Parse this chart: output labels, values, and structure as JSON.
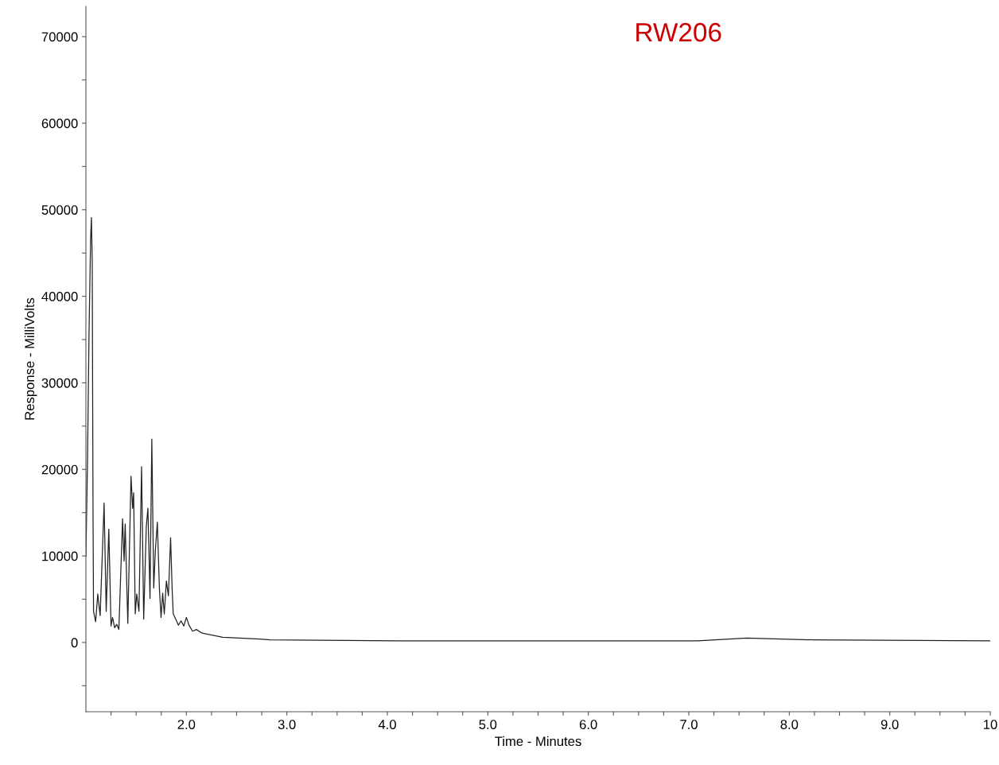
{
  "chart_data": {
    "type": "line",
    "annotations": [
      "RW206"
    ],
    "xlabel": "Time - Minutes",
    "ylabel": "Response - MilliVolts",
    "xlim": [
      1.0,
      10.0
    ],
    "ylim": [
      -8000,
      73500
    ],
    "xticks": [
      {
        "value": 1.25,
        "label": null
      },
      {
        "value": 1.5,
        "label": null
      },
      {
        "value": 1.75,
        "label": null
      },
      {
        "value": 2,
        "label": "2.0"
      },
      {
        "value": 2.25,
        "label": null
      },
      {
        "value": 2.5,
        "label": null
      },
      {
        "value": 2.75,
        "label": null
      },
      {
        "value": 3,
        "label": "3.0"
      },
      {
        "value": 3.25,
        "label": null
      },
      {
        "value": 3.5,
        "label": null
      },
      {
        "value": 3.75,
        "label": null
      },
      {
        "value": 4,
        "label": "4.0"
      },
      {
        "value": 4.25,
        "label": null
      },
      {
        "value": 4.5,
        "label": null
      },
      {
        "value": 4.75,
        "label": null
      },
      {
        "value": 5,
        "label": "5.0"
      },
      {
        "value": 5.25,
        "label": null
      },
      {
        "value": 5.5,
        "label": null
      },
      {
        "value": 5.75,
        "label": null
      },
      {
        "value": 6,
        "label": "6.0"
      },
      {
        "value": 6.25,
        "label": null
      },
      {
        "value": 6.5,
        "label": null
      },
      {
        "value": 6.75,
        "label": null
      },
      {
        "value": 7,
        "label": "7.0"
      },
      {
        "value": 7.25,
        "label": null
      },
      {
        "value": 7.5,
        "label": null
      },
      {
        "value": 7.75,
        "label": null
      },
      {
        "value": 8,
        "label": "8.0"
      },
      {
        "value": 8.25,
        "label": null
      },
      {
        "value": 8.5,
        "label": null
      },
      {
        "value": 8.75,
        "label": null
      },
      {
        "value": 9,
        "label": "9.0"
      },
      {
        "value": 9.25,
        "label": null
      },
      {
        "value": 9.5,
        "label": null
      },
      {
        "value": 9.75,
        "label": null
      },
      {
        "value": 10,
        "label": "10"
      }
    ],
    "yticks": [
      {
        "value": -5000,
        "label": null
      },
      0,
      {
        "value": 5000,
        "label": null
      },
      10000,
      {
        "value": 15000,
        "label": null
      },
      20000,
      {
        "value": 25000,
        "label": null
      },
      30000,
      {
        "value": 35000,
        "label": null
      },
      40000,
      {
        "value": 45000,
        "label": null
      },
      50000,
      {
        "value": 55000,
        "label": null
      },
      60000,
      {
        "value": 65000,
        "label": null
      },
      70000
    ],
    "grid": false,
    "series": [
      {
        "color": "#222222",
        "x": [
          1.0,
          1.016,
          1.031,
          1.047,
          1.055,
          1.063,
          1.071,
          1.076,
          1.097,
          1.118,
          1.142,
          1.181,
          1.202,
          1.228,
          1.25,
          1.265,
          1.286,
          1.307,
          1.328,
          1.365,
          1.38,
          1.391,
          1.417,
          1.449,
          1.465,
          1.475,
          1.491,
          1.506,
          1.528,
          1.554,
          1.575,
          1.601,
          1.617,
          1.628,
          1.638,
          1.656,
          1.675,
          1.691,
          1.711,
          1.732,
          1.748,
          1.764,
          1.78,
          1.801,
          1.821,
          1.843,
          1.858,
          1.869,
          1.89,
          1.921,
          1.947,
          1.974,
          2.0,
          2.026,
          2.061,
          2.1,
          2.152,
          2.362,
          2.73,
          2.835,
          4.094,
          5.328,
          7.087,
          7.575,
          8.244,
          10.0
        ],
        "values": [
          10000,
          21000,
          35700,
          46700,
          49100,
          44000,
          14600,
          3600,
          2400,
          5600,
          3100,
          16100,
          3600,
          13100,
          1900,
          2900,
          1700,
          2100,
          1500,
          14300,
          9400,
          13700,
          2200,
          19200,
          15500,
          17300,
          3300,
          5600,
          3600,
          20300,
          2700,
          13400,
          15500,
          10300,
          5100,
          23500,
          6300,
          10600,
          13900,
          6100,
          2900,
          5700,
          3300,
          7100,
          5400,
          12100,
          6300,
          3300,
          2800,
          2000,
          2500,
          1900,
          2900,
          2000,
          1300,
          1500,
          1100,
          600,
          400,
          300,
          200,
          200,
          200,
          500,
          300,
          200
        ]
      }
    ]
  }
}
